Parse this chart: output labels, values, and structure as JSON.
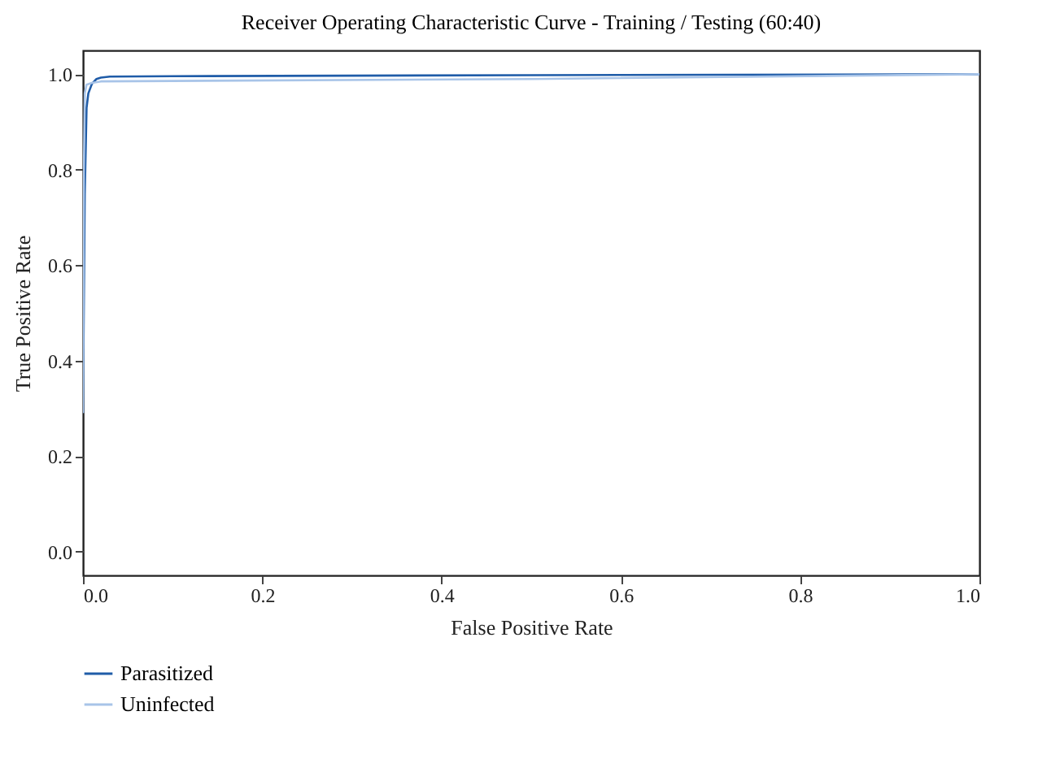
{
  "chart_data": {
    "type": "line",
    "title": "Receiver Operating Characteristic Curve - Training / Testing (60:40)",
    "xlabel": "False Positive Rate",
    "ylabel": "True Positive Rate",
    "xlim": [
      0,
      1
    ],
    "ylim": [
      -0.05,
      1.05
    ],
    "xticks": [
      {
        "value": 0,
        "label": "0.0"
      },
      0.2,
      0.4,
      0.6,
      0.8,
      {
        "value": 1,
        "label": "1.0"
      }
    ],
    "yticks": [
      {
        "value": 0,
        "label": "0.0"
      },
      0.2,
      0.4,
      0.6,
      0.8,
      {
        "value": 1,
        "label": "1.0"
      }
    ],
    "legend": "bottom left",
    "grid": false,
    "series": [
      {
        "name": "Parasitized",
        "color": "#1f5ca8",
        "x": [
          0,
          0.002,
          0.004,
          0.006,
          0.01,
          0.015,
          0.02,
          0.03,
          0.1,
          0.5,
          1
        ],
        "values": [
          0.29,
          0.75,
          0.93,
          0.96,
          0.98,
          0.99,
          0.993,
          0.995,
          0.996,
          0.998,
          1
        ]
      },
      {
        "name": "Uninfected",
        "color": "#a8c4e8",
        "x": [
          0,
          0.001,
          0.002,
          0.004,
          0.01,
          0.02,
          0.1,
          0.5,
          1
        ],
        "values": [
          0.29,
          0.8,
          0.96,
          0.978,
          0.982,
          0.985,
          0.986,
          0.99,
          1
        ]
      }
    ]
  }
}
